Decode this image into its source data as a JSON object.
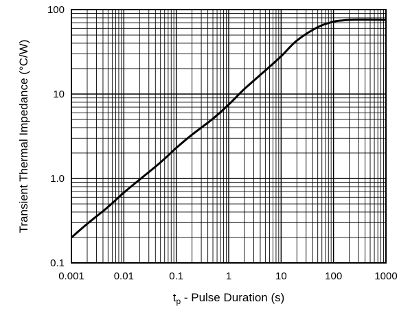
{
  "chart_data": {
    "type": "line",
    "x_scale": "log",
    "y_scale": "log",
    "xlim": [
      0.001,
      1000
    ],
    "ylim": [
      0.1,
      100
    ],
    "grid": true,
    "x_tick_labels": [
      "0.001",
      "0.01",
      "0.1",
      "1",
      "10",
      "100",
      "1000"
    ],
    "x_tick_values": [
      0.001,
      0.01,
      0.1,
      1,
      10,
      100,
      1000
    ],
    "y_tick_labels": [
      "0.1",
      "1.0",
      "10",
      "100"
    ],
    "y_tick_values": [
      0.1,
      1,
      10,
      100
    ],
    "xlabel_main": "t",
    "xlabel_sub": "p",
    "xlabel_rest": " - Pulse Duration (s)",
    "ylabel": "Transient Thermal Impedance (°C/W)",
    "series": [
      {
        "color": "#000000",
        "x": [
          0.001,
          0.002,
          0.005,
          0.01,
          0.02,
          0.05,
          0.1,
          0.2,
          0.5,
          1,
          2,
          5,
          10,
          20,
          50,
          100,
          150,
          200,
          300,
          500,
          1000
        ],
        "y": [
          0.2,
          0.29,
          0.46,
          0.68,
          0.97,
          1.55,
          2.3,
          3.3,
          5.1,
          7.5,
          11.5,
          19,
          28,
          43,
          62,
          72,
          74.5,
          75.5,
          76,
          76,
          75.5
        ]
      }
    ]
  }
}
